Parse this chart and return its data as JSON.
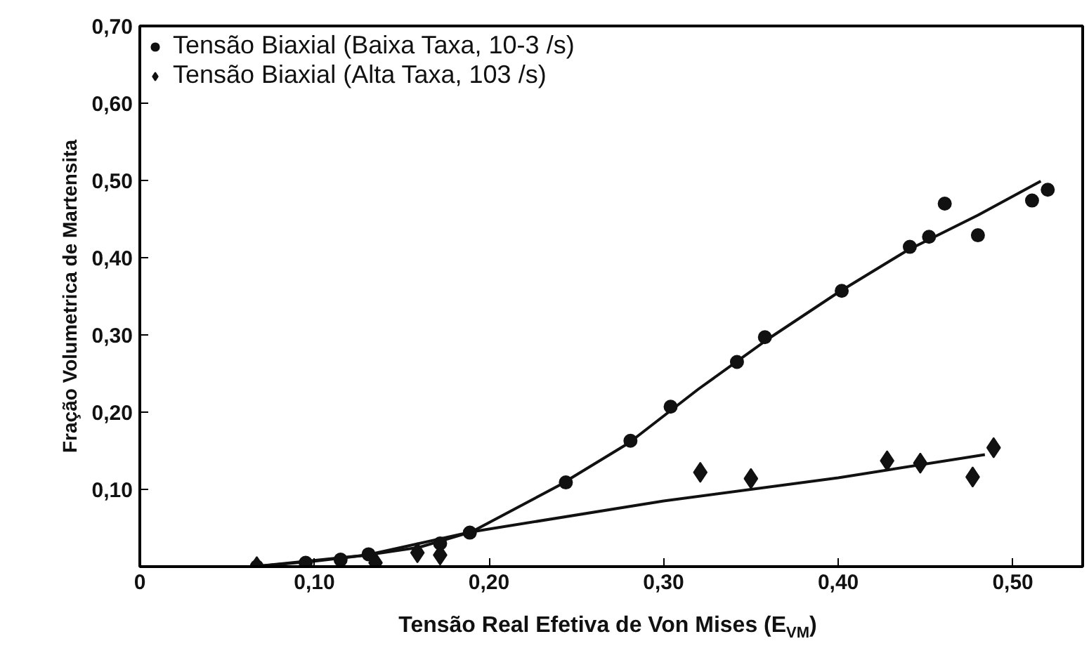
{
  "chart_data": {
    "type": "scatter",
    "xlabel": "Tensão Real Efetiva de Von Mises (E$_{VM}$)",
    "ylabel": "Fração Volumetrica de Martensita",
    "xlim": [
      0,
      0.54
    ],
    "ylim": [
      0,
      0.7
    ],
    "xticks": [
      {
        "value": 0,
        "label": "0"
      },
      {
        "value": 0.1,
        "label": "0,10"
      },
      {
        "value": 0.2,
        "label": "0,20"
      },
      {
        "value": 0.3,
        "label": "0,30"
      },
      {
        "value": 0.4,
        "label": "0,40"
      },
      {
        "value": 0.5,
        "label": "0,50"
      }
    ],
    "yticks": [
      {
        "value": 0.1,
        "label": "0,10"
      },
      {
        "value": 0.2,
        "label": "0,20"
      },
      {
        "value": 0.3,
        "label": "0,30"
      },
      {
        "value": 0.4,
        "label": "0,40"
      },
      {
        "value": 0.5,
        "label": "0,50"
      },
      {
        "value": 0.6,
        "label": "0,60"
      },
      {
        "value": 0.7,
        "label": "0,70"
      }
    ],
    "grid": false,
    "legend": "top left",
    "series": [
      {
        "name": "Tensão Biaxial (Baixa Taxa, 10-3 /s)",
        "marker": "circle",
        "color": "#111111",
        "x": [
          0.067,
          0.095,
          0.115,
          0.131,
          0.172,
          0.189,
          0.244,
          0.281,
          0.304,
          0.342,
          0.358,
          0.402,
          0.441,
          0.452,
          0.461,
          0.48,
          0.511,
          0.52
        ],
        "values": [
          0.0,
          0.005,
          0.009,
          0.016,
          0.03,
          0.044,
          0.109,
          0.163,
          0.207,
          0.265,
          0.297,
          0.357,
          0.414,
          0.427,
          0.47,
          0.429,
          0.474,
          0.488
        ]
      },
      {
        "name": "Tensão Biaxial (Alta Taxa, 103 /s)",
        "marker": "diamond",
        "color": "#111111",
        "x": [
          0.067,
          0.135,
          0.159,
          0.172,
          0.321,
          0.35,
          0.428,
          0.447,
          0.477,
          0.489
        ],
        "values": [
          0.0,
          0.005,
          0.018,
          0.015,
          0.122,
          0.114,
          0.137,
          0.134,
          0.116,
          0.154
        ]
      },
      {
        "type": "line",
        "color": "#111111",
        "x": [
          0.065,
          0.1,
          0.13,
          0.16,
          0.19,
          0.24,
          0.28,
          0.32,
          0.36,
          0.4,
          0.44,
          0.48,
          0.516
        ],
        "values": [
          0.0,
          0.007,
          0.015,
          0.025,
          0.045,
          0.105,
          0.16,
          0.23,
          0.295,
          0.355,
          0.41,
          0.455,
          0.499
        ]
      },
      {
        "type": "line",
        "color": "#111111",
        "x": [
          0.065,
          0.13,
          0.19,
          0.3,
          0.4,
          0.484
        ],
        "values": [
          0.0,
          0.015,
          0.045,
          0.085,
          0.115,
          0.145
        ]
      }
    ]
  }
}
